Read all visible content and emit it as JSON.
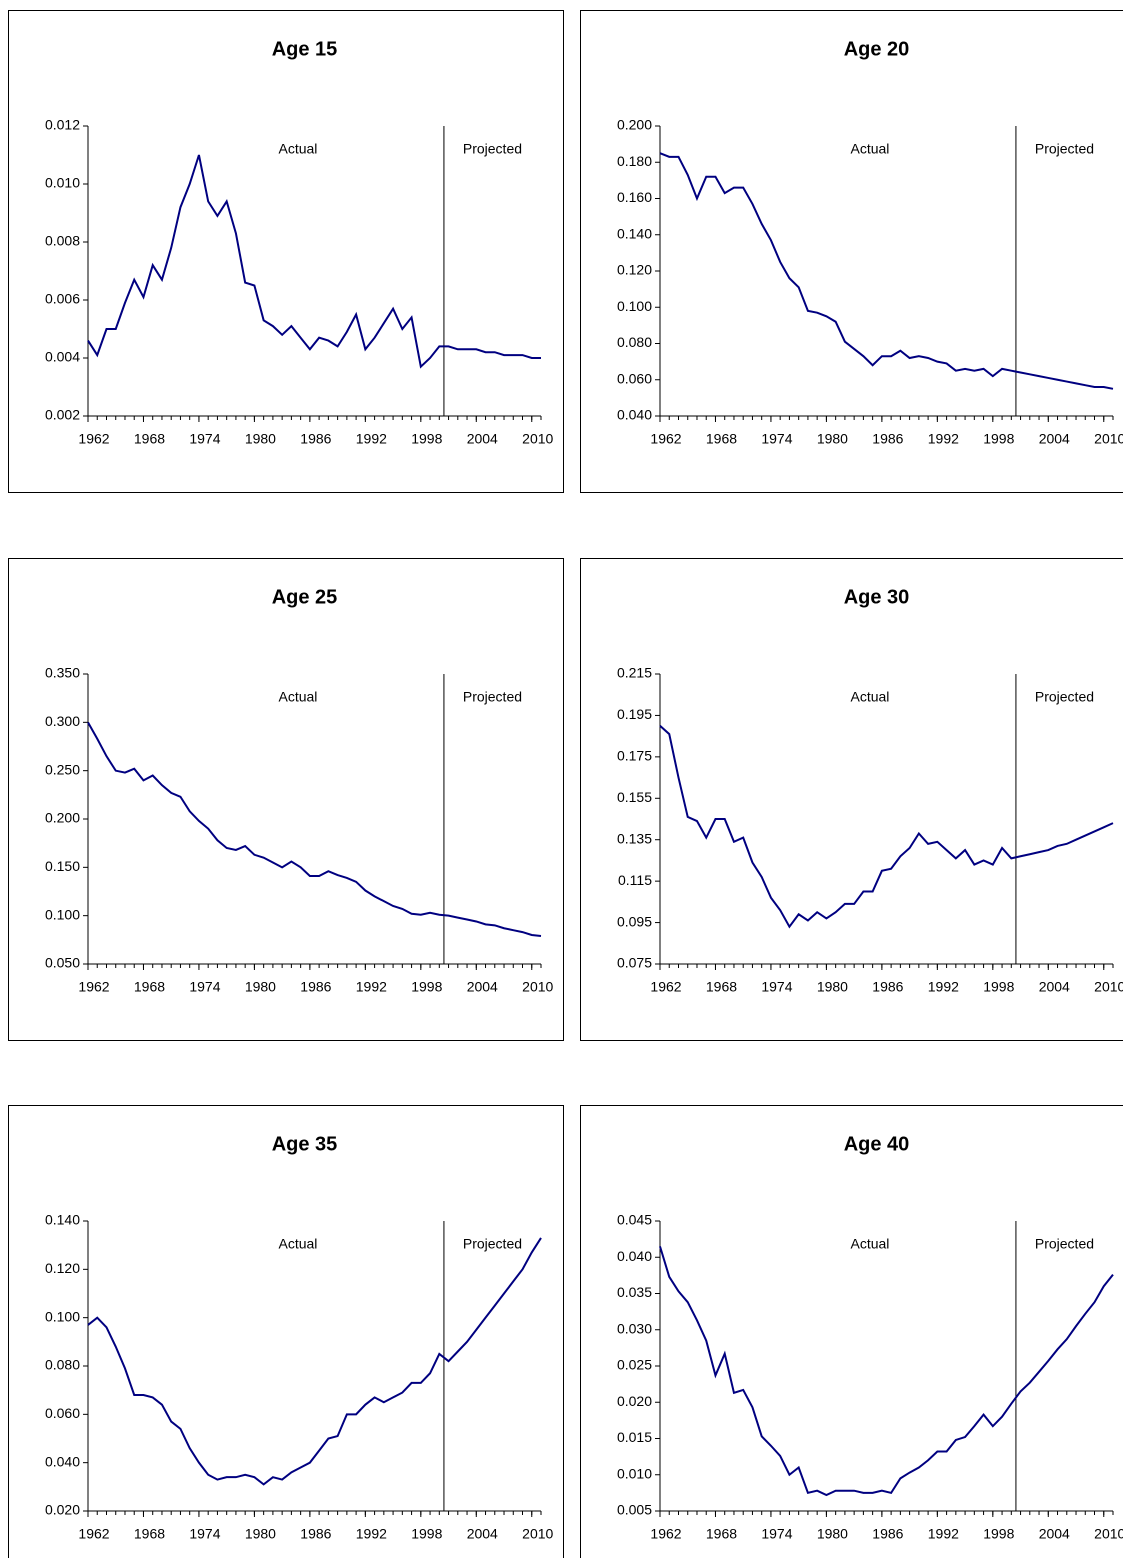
{
  "chart_data": [
    {
      "type": "line",
      "title": "Age 15",
      "annotations": [
        "Actual",
        "Projected"
      ],
      "divider_x": 2000.5,
      "x": [
        1962,
        1963,
        1964,
        1965,
        1966,
        1967,
        1968,
        1969,
        1970,
        1971,
        1972,
        1973,
        1974,
        1975,
        1976,
        1977,
        1978,
        1979,
        1980,
        1981,
        1982,
        1983,
        1984,
        1985,
        1986,
        1987,
        1988,
        1989,
        1990,
        1991,
        1992,
        1993,
        1994,
        1995,
        1996,
        1997,
        1998,
        1999,
        2000,
        2001,
        2002,
        2003,
        2004,
        2005,
        2006,
        2007,
        2008,
        2009,
        2010,
        2011
      ],
      "series": [
        {
          "color": "#000080",
          "values": [
            0.0046,
            0.0041,
            0.005,
            0.005,
            0.0059,
            0.0067,
            0.0061,
            0.0072,
            0.0067,
            0.0078,
            0.0092,
            0.01,
            0.011,
            0.0094,
            0.0089,
            0.0094,
            0.0083,
            0.0066,
            0.0065,
            0.0053,
            0.0051,
            0.0048,
            0.0051,
            0.0047,
            0.0043,
            0.0047,
            0.0046,
            0.0044,
            0.0049,
            0.0055,
            0.0043,
            0.0047,
            0.0052,
            0.0057,
            0.005,
            0.0054,
            0.0037,
            0.004,
            0.0044,
            0.0044,
            0.0043,
            0.0043,
            0.0043,
            0.0042,
            0.0042,
            0.0041,
            0.0041,
            0.0041,
            0.004,
            0.004
          ]
        }
      ],
      "xlim": [
        1962,
        2011
      ],
      "xticks": [
        1962,
        1968,
        1974,
        1980,
        1986,
        1992,
        1998,
        2004,
        2010
      ],
      "ylim": [
        0.002,
        0.012
      ],
      "yticks": [
        0.002,
        0.004,
        0.006,
        0.008,
        {
          "value": 0.01,
          "label": "0.010"
        },
        0.012
      ]
    },
    {
      "type": "line",
      "title": "Age 20",
      "annotations": [
        "Actual",
        "Projected"
      ],
      "divider_x": 2000.5,
      "x": [
        1962,
        1963,
        1964,
        1965,
        1966,
        1967,
        1968,
        1969,
        1970,
        1971,
        1972,
        1973,
        1974,
        1975,
        1976,
        1977,
        1978,
        1979,
        1980,
        1981,
        1982,
        1983,
        1984,
        1985,
        1986,
        1987,
        1988,
        1989,
        1990,
        1991,
        1992,
        1993,
        1994,
        1995,
        1996,
        1997,
        1998,
        1999,
        2000,
        2001,
        2002,
        2003,
        2004,
        2005,
        2006,
        2007,
        2008,
        2009,
        2010,
        2011
      ],
      "series": [
        {
          "color": "#000080",
          "values": [
            0.185,
            0.183,
            0.183,
            0.173,
            0.16,
            0.172,
            0.172,
            0.163,
            0.166,
            0.166,
            0.157,
            0.146,
            0.137,
            0.125,
            0.116,
            0.111,
            0.098,
            0.097,
            0.095,
            0.092,
            0.081,
            0.077,
            0.073,
            0.068,
            0.073,
            0.073,
            0.076,
            0.072,
            0.073,
            0.072,
            0.07,
            0.069,
            0.065,
            0.066,
            0.065,
            0.066,
            0.062,
            0.066,
            0.065,
            0.064,
            0.063,
            0.062,
            0.061,
            0.06,
            0.059,
            0.058,
            0.057,
            0.056,
            0.056,
            0.055
          ]
        }
      ],
      "xlim": [
        1962,
        2011
      ],
      "xticks": [
        1962,
        1968,
        1974,
        1980,
        1986,
        1992,
        1998,
        2004,
        2010
      ],
      "ylim": [
        0.04,
        0.2
      ],
      "yticks": [
        {
          "value": 0.04,
          "label": "0.040"
        },
        {
          "value": 0.06,
          "label": "0.060"
        },
        {
          "value": 0.08,
          "label": "0.080"
        },
        {
          "value": 0.1,
          "label": "0.100"
        },
        {
          "value": 0.12,
          "label": "0.120"
        },
        {
          "value": 0.14,
          "label": "0.140"
        },
        {
          "value": 0.16,
          "label": "0.160"
        },
        {
          "value": 0.18,
          "label": "0.180"
        },
        {
          "value": 0.2,
          "label": "0.200"
        }
      ]
    },
    {
      "type": "line",
      "title": "Age 25",
      "annotations": [
        "Actual",
        "Projected"
      ],
      "divider_x": 2000.5,
      "x": [
        1962,
        1963,
        1964,
        1965,
        1966,
        1967,
        1968,
        1969,
        1970,
        1971,
        1972,
        1973,
        1974,
        1975,
        1976,
        1977,
        1978,
        1979,
        1980,
        1981,
        1982,
        1983,
        1984,
        1985,
        1986,
        1987,
        1988,
        1989,
        1990,
        1991,
        1992,
        1993,
        1994,
        1995,
        1996,
        1997,
        1998,
        1999,
        2000,
        2001,
        2002,
        2003,
        2004,
        2005,
        2006,
        2007,
        2008,
        2009,
        2010,
        2011
      ],
      "series": [
        {
          "color": "#000080",
          "values": [
            0.3,
            0.283,
            0.265,
            0.25,
            0.248,
            0.252,
            0.24,
            0.245,
            0.235,
            0.227,
            0.223,
            0.208,
            0.198,
            0.19,
            0.178,
            0.17,
            0.168,
            0.172,
            0.163,
            0.16,
            0.155,
            0.15,
            0.156,
            0.15,
            0.141,
            0.141,
            0.146,
            0.142,
            0.139,
            0.135,
            0.126,
            0.12,
            0.115,
            0.11,
            0.107,
            0.102,
            0.101,
            0.103,
            0.101,
            0.1,
            0.098,
            0.096,
            0.094,
            0.091,
            0.09,
            0.087,
            0.085,
            0.083,
            0.08,
            0.079
          ]
        }
      ],
      "xlim": [
        1962,
        2011
      ],
      "xticks": [
        1962,
        1968,
        1974,
        1980,
        1986,
        1992,
        1998,
        2004,
        2010
      ],
      "ylim": [
        0.05,
        0.35
      ],
      "yticks": [
        {
          "value": 0.05,
          "label": "0.050"
        },
        {
          "value": 0.1,
          "label": "0.100"
        },
        {
          "value": 0.15,
          "label": "0.150"
        },
        {
          "value": 0.2,
          "label": "0.200"
        },
        {
          "value": 0.25,
          "label": "0.250"
        },
        {
          "value": 0.3,
          "label": "0.300"
        },
        {
          "value": 0.35,
          "label": "0.350"
        }
      ]
    },
    {
      "type": "line",
      "title": "Age 30",
      "annotations": [
        "Actual",
        "Projected"
      ],
      "divider_x": 2000.5,
      "x": [
        1962,
        1963,
        1964,
        1965,
        1966,
        1967,
        1968,
        1969,
        1970,
        1971,
        1972,
        1973,
        1974,
        1975,
        1976,
        1977,
        1978,
        1979,
        1980,
        1981,
        1982,
        1983,
        1984,
        1985,
        1986,
        1987,
        1988,
        1989,
        1990,
        1991,
        1992,
        1993,
        1994,
        1995,
        1996,
        1997,
        1998,
        1999,
        2000,
        2001,
        2002,
        2003,
        2004,
        2005,
        2006,
        2007,
        2008,
        2009,
        2010,
        2011
      ],
      "series": [
        {
          "color": "#000080",
          "values": [
            0.19,
            0.186,
            0.165,
            0.146,
            0.144,
            0.136,
            0.145,
            0.145,
            0.134,
            0.136,
            0.124,
            0.117,
            0.107,
            0.101,
            0.093,
            0.099,
            0.096,
            0.1,
            0.097,
            0.1,
            0.104,
            0.104,
            0.11,
            0.11,
            0.12,
            0.121,
            0.127,
            0.131,
            0.138,
            0.133,
            0.134,
            0.13,
            0.126,
            0.13,
            0.123,
            0.125,
            0.123,
            0.131,
            0.126,
            0.127,
            0.128,
            0.129,
            0.13,
            0.132,
            0.133,
            0.135,
            0.137,
            0.139,
            0.141,
            0.143
          ]
        }
      ],
      "xlim": [
        1962,
        2011
      ],
      "xticks": [
        1962,
        1968,
        1974,
        1980,
        1986,
        1992,
        1998,
        2004,
        2010
      ],
      "ylim": [
        0.075,
        0.215
      ],
      "yticks": [
        0.075,
        0.095,
        0.115,
        0.135,
        0.155,
        0.175,
        0.195,
        0.215
      ]
    },
    {
      "type": "line",
      "title": "Age 35",
      "annotations": [
        "Actual",
        "Projected"
      ],
      "divider_x": 2000.5,
      "x": [
        1962,
        1963,
        1964,
        1965,
        1966,
        1967,
        1968,
        1969,
        1970,
        1971,
        1972,
        1973,
        1974,
        1975,
        1976,
        1977,
        1978,
        1979,
        1980,
        1981,
        1982,
        1983,
        1984,
        1985,
        1986,
        1987,
        1988,
        1989,
        1990,
        1991,
        1992,
        1993,
        1994,
        1995,
        1996,
        1997,
        1998,
        1999,
        2000,
        2001,
        2002,
        2003,
        2004,
        2005,
        2006,
        2007,
        2008,
        2009,
        2010,
        2011
      ],
      "series": [
        {
          "color": "#000080",
          "values": [
            0.097,
            0.1,
            0.096,
            0.088,
            0.079,
            0.068,
            0.068,
            0.067,
            0.064,
            0.057,
            0.054,
            0.046,
            0.04,
            0.035,
            0.033,
            0.034,
            0.034,
            0.035,
            0.034,
            0.031,
            0.034,
            0.033,
            0.036,
            0.038,
            0.04,
            0.045,
            0.05,
            0.051,
            0.06,
            0.06,
            0.064,
            0.067,
            0.065,
            0.067,
            0.069,
            0.073,
            0.073,
            0.077,
            0.085,
            0.082,
            0.086,
            0.09,
            0.095,
            0.1,
            0.105,
            0.11,
            0.115,
            0.12,
            0.127,
            0.133
          ]
        }
      ],
      "xlim": [
        1962,
        2011
      ],
      "xticks": [
        1962,
        1968,
        1974,
        1980,
        1986,
        1992,
        1998,
        2004,
        2010
      ],
      "ylim": [
        0.02,
        0.14
      ],
      "yticks": [
        {
          "value": 0.02,
          "label": "0.020"
        },
        {
          "value": 0.04,
          "label": "0.040"
        },
        {
          "value": 0.06,
          "label": "0.060"
        },
        {
          "value": 0.08,
          "label": "0.080"
        },
        {
          "value": 0.1,
          "label": "0.100"
        },
        {
          "value": 0.12,
          "label": "0.120"
        },
        {
          "value": 0.14,
          "label": "0.140"
        }
      ]
    },
    {
      "type": "line",
      "title": "Age 40",
      "annotations": [
        "Actual",
        "Projected"
      ],
      "divider_x": 2000.5,
      "x": [
        1962,
        1963,
        1964,
        1965,
        1966,
        1967,
        1968,
        1969,
        1970,
        1971,
        1972,
        1973,
        1974,
        1975,
        1976,
        1977,
        1978,
        1979,
        1980,
        1981,
        1982,
        1983,
        1984,
        1985,
        1986,
        1987,
        1988,
        1989,
        1990,
        1991,
        1992,
        1993,
        1994,
        1995,
        1996,
        1997,
        1998,
        1999,
        2000,
        2001,
        2002,
        2003,
        2004,
        2005,
        2006,
        2007,
        2008,
        2009,
        2010,
        2011
      ],
      "series": [
        {
          "color": "#000080",
          "values": [
            0.0415,
            0.0373,
            0.0353,
            0.0338,
            0.0313,
            0.0285,
            0.0237,
            0.0267,
            0.0213,
            0.0217,
            0.0193,
            0.0153,
            0.014,
            0.0126,
            0.01,
            0.011,
            0.0075,
            0.0078,
            0.0072,
            0.0078,
            0.0078,
            0.0078,
            0.0075,
            0.0075,
            0.0078,
            0.0075,
            0.0095,
            0.0103,
            0.011,
            0.012,
            0.0132,
            0.0132,
            0.0148,
            0.0152,
            0.0167,
            0.0183,
            0.0167,
            0.018,
            0.0198,
            0.0215,
            0.0227,
            0.0242,
            0.0257,
            0.0273,
            0.0287,
            0.0305,
            0.0322,
            0.0338,
            0.036,
            0.0376
          ]
        }
      ],
      "xlim": [
        1962,
        2011
      ],
      "xticks": [
        1962,
        1968,
        1974,
        1980,
        1986,
        1992,
        1998,
        2004,
        2010
      ],
      "ylim": [
        0.005,
        0.045
      ],
      "yticks": [
        0.005,
        {
          "value": 0.01,
          "label": "0.010"
        },
        0.015,
        {
          "value": 0.02,
          "label": "0.020"
        },
        0.025,
        {
          "value": 0.03,
          "label": "0.030"
        },
        0.035,
        {
          "value": 0.04,
          "label": "0.040"
        },
        0.045
      ]
    }
  ]
}
